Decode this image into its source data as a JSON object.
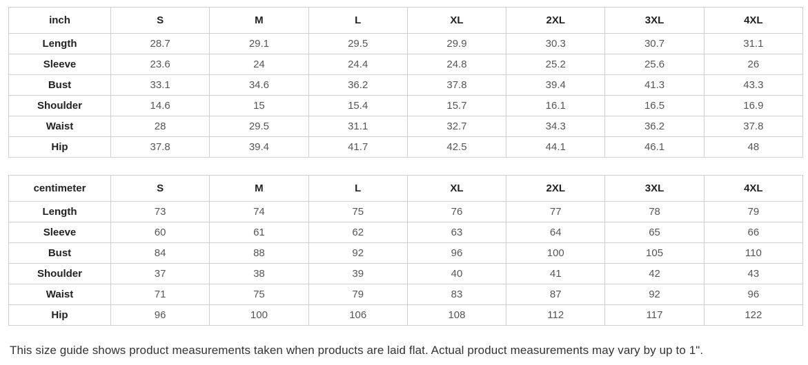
{
  "colors": {
    "background": "#ffffff",
    "table_border": "#cfcfcf",
    "header_text": "#222222",
    "value_text": "#555555",
    "note_text": "#333333"
  },
  "tables": [
    {
      "unit_label": "inch",
      "sizes": [
        "S",
        "M",
        "L",
        "XL",
        "2XL",
        "3XL",
        "4XL"
      ],
      "rows": [
        {
          "label": "Length",
          "values": [
            "28.7",
            "29.1",
            "29.5",
            "29.9",
            "30.3",
            "30.7",
            "31.1"
          ]
        },
        {
          "label": "Sleeve",
          "values": [
            "23.6",
            "24",
            "24.4",
            "24.8",
            "25.2",
            "25.6",
            "26"
          ]
        },
        {
          "label": "Bust",
          "values": [
            "33.1",
            "34.6",
            "36.2",
            "37.8",
            "39.4",
            "41.3",
            "43.3"
          ]
        },
        {
          "label": "Shoulder",
          "values": [
            "14.6",
            "15",
            "15.4",
            "15.7",
            "16.1",
            "16.5",
            "16.9"
          ]
        },
        {
          "label": "Waist",
          "values": [
            "28",
            "29.5",
            "31.1",
            "32.7",
            "34.3",
            "36.2",
            "37.8"
          ]
        },
        {
          "label": "Hip",
          "values": [
            "37.8",
            "39.4",
            "41.7",
            "42.5",
            "44.1",
            "46.1",
            "48"
          ]
        }
      ]
    },
    {
      "unit_label": "centimeter",
      "sizes": [
        "S",
        "M",
        "L",
        "XL",
        "2XL",
        "3XL",
        "4XL"
      ],
      "rows": [
        {
          "label": "Length",
          "values": [
            "73",
            "74",
            "75",
            "76",
            "77",
            "78",
            "79"
          ]
        },
        {
          "label": "Sleeve",
          "values": [
            "60",
            "61",
            "62",
            "63",
            "64",
            "65",
            "66"
          ]
        },
        {
          "label": "Bust",
          "values": [
            "84",
            "88",
            "92",
            "96",
            "100",
            "105",
            "110"
          ]
        },
        {
          "label": "Shoulder",
          "values": [
            "37",
            "38",
            "39",
            "40",
            "41",
            "42",
            "43"
          ]
        },
        {
          "label": "Waist",
          "values": [
            "71",
            "75",
            "79",
            "83",
            "87",
            "92",
            "96"
          ]
        },
        {
          "label": "Hip",
          "values": [
            "96",
            "100",
            "106",
            "108",
            "112",
            "117",
            "122"
          ]
        }
      ]
    }
  ],
  "footer": {
    "note": "This size guide shows product measurements taken when products are laid flat. Actual product measurements may vary by up to 1\"."
  }
}
